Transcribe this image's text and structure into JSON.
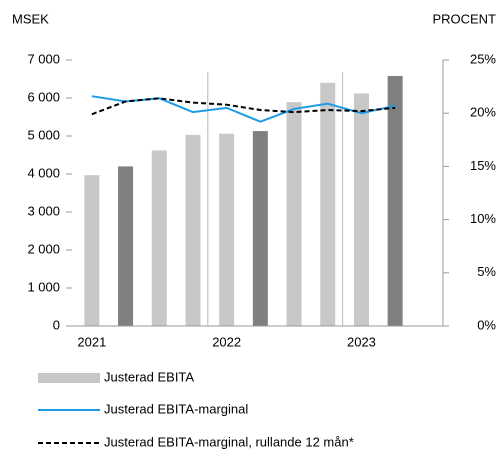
{
  "chart_data": {
    "type": "bar",
    "ylabel": "MSEK",
    "y2label": "PROCENT",
    "categories": [
      "2021",
      null,
      null,
      null,
      "2022",
      null,
      null,
      null,
      "2023",
      null
    ],
    "series": [
      {
        "name": "Justerad EBITA",
        "type": "bar",
        "color": "#c8c8c8",
        "colors": [
          "#c8c8c8",
          "#808080",
          "#c8c8c8",
          "#c8c8c8",
          "#c8c8c8",
          "#808080",
          "#c8c8c8",
          "#c8c8c8",
          "#c8c8c8",
          "#808080"
        ],
        "values": [
          3970,
          4200,
          4620,
          5030,
          5060,
          5130,
          5890,
          6400,
          6120,
          6580
        ]
      },
      {
        "name": "Justerad EBITA-marginal",
        "type": "line",
        "axis": "y2",
        "color": "#1e9be6",
        "values": [
          21.6,
          21.1,
          21.4,
          20.1,
          20.5,
          19.2,
          20.4,
          20.9,
          20.0,
          20.7
        ]
      },
      {
        "name": "Justerad EBITA-marginal, rullande 12 mån*",
        "type": "line",
        "axis": "y2",
        "color": "#000000",
        "dashed": true,
        "values": [
          19.9,
          21.1,
          21.4,
          21.0,
          20.8,
          20.3,
          20.1,
          20.3,
          20.2,
          20.5
        ]
      }
    ],
    "ylim": [
      0,
      7000
    ],
    "yticks": [
      0,
      {
        "value": 1000,
        "label": "1 000"
      },
      {
        "value": 2000,
        "label": "2 000"
      },
      {
        "value": 3000,
        "label": "3 000"
      },
      {
        "value": 4000,
        "label": "4 000"
      },
      {
        "value": 5000,
        "label": "5 000"
      },
      {
        "value": 6000,
        "label": "6 000"
      },
      {
        "value": 7000,
        "label": "7 000"
      }
    ],
    "y2lim": [
      0,
      25
    ],
    "y2ticks": [
      {
        "value": 0,
        "label": "0%"
      },
      {
        "value": 5,
        "label": "5%"
      },
      {
        "value": 10,
        "label": "10%"
      },
      {
        "value": 15,
        "label": "15%"
      },
      {
        "value": 20,
        "label": "20%"
      },
      {
        "value": 25,
        "label": "25%"
      }
    ]
  }
}
